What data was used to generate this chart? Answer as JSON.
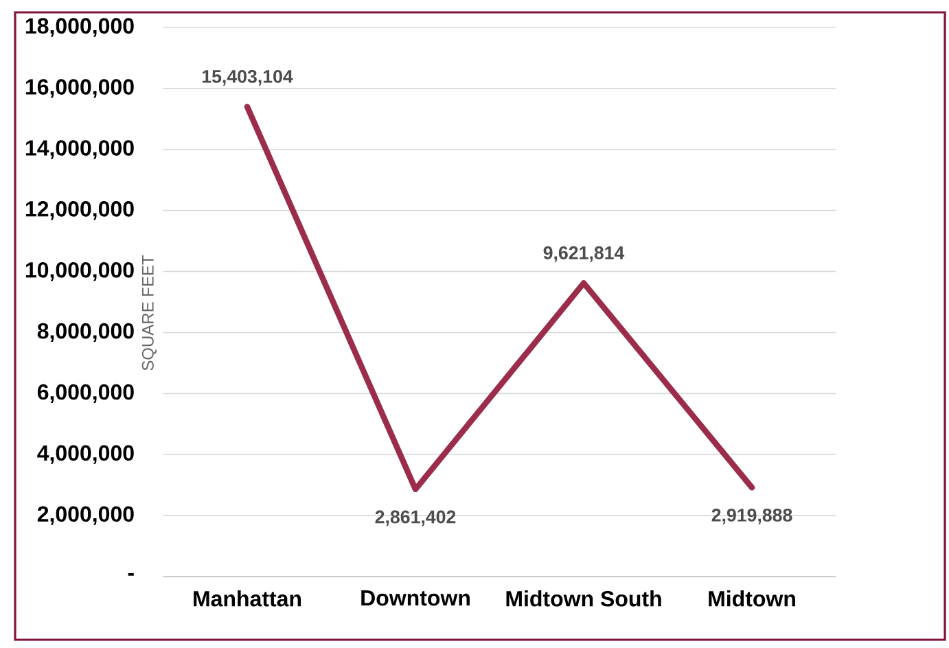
{
  "chart_data": {
    "type": "line",
    "ylabel": "SQUARE FEET",
    "categories": [
      "Manhattan",
      "Downtown",
      "Midtown South",
      "Midtown"
    ],
    "series": [
      {
        "color": "#9b2d4a",
        "values": [
          15403104,
          2861402,
          9621814,
          2919888
        ],
        "value_labels": [
          "15,403,104",
          "2,861,402",
          "9,621,814",
          "2,919,888"
        ]
      }
    ],
    "ylim": [
      0,
      18000000
    ],
    "yticks": [
      {
        "value": 0,
        "label": "-"
      },
      {
        "value": 2000000,
        "label": "2,000,000"
      },
      {
        "value": 4000000,
        "label": "4,000,000"
      },
      {
        "value": 6000000,
        "label": "6,000,000"
      },
      {
        "value": 8000000,
        "label": "8,000,000"
      },
      {
        "value": 10000000,
        "label": "10,000,000"
      },
      {
        "value": 12000000,
        "label": "12,000,000"
      },
      {
        "value": 14000000,
        "label": "14,000,000"
      },
      {
        "value": 16000000,
        "label": "16,000,000"
      },
      {
        "value": 18000000,
        "label": "18,000,000"
      }
    ],
    "grid": "y",
    "marker": "none",
    "line_style": "solid"
  }
}
